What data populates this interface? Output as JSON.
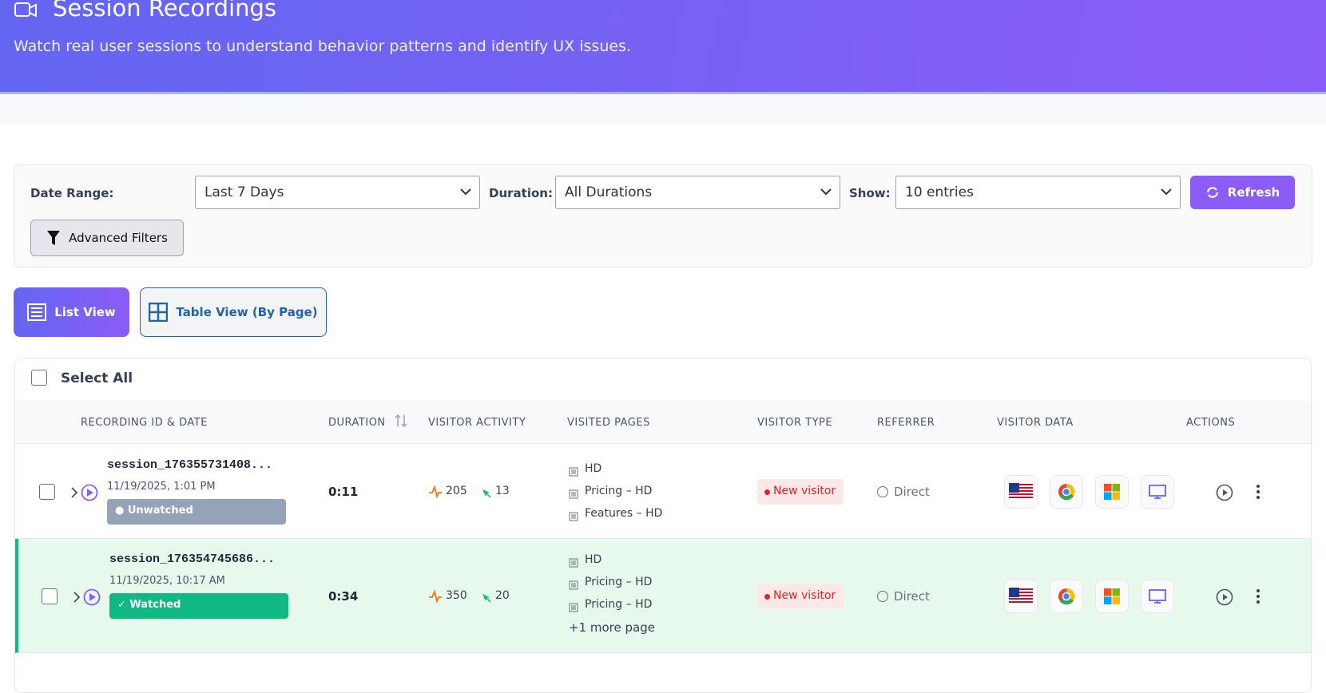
{
  "header": {
    "title": "Session Recordings",
    "subtitle": "Watch real user sessions to understand behavior patterns and identify UX issues."
  },
  "filters": {
    "date_range": {
      "label": "Date Range:",
      "value": "Last 7 Days"
    },
    "duration": {
      "label": "Duration:",
      "value": "All Durations"
    },
    "show": {
      "label": "Show:",
      "value": "10 entries"
    },
    "refresh": "Refresh",
    "advanced": "Advanced Filters"
  },
  "views": {
    "list": "List View",
    "table": "Table View (By Page)"
  },
  "table": {
    "select_all": "Select All",
    "columns": [
      "RECORDING ID & DATE",
      "DURATION",
      "VISITOR ACTIVITY",
      "VISITED PAGES",
      "VISITOR TYPE",
      "REFERRER",
      "VISITOR DATA",
      "ACTIONS"
    ],
    "rows": [
      {
        "id": "session_176355731408...",
        "date": "11/19/2025, 1:01 PM",
        "status": "● Unwatched",
        "duration": "0:11",
        "activity": "205",
        "clicks": "13",
        "pages": [
          "HD",
          "Pricing – HD",
          "Features – HD"
        ],
        "visitor_type": "New visitor",
        "referrer": "Direct"
      },
      {
        "id": "session_176354745686...",
        "date": "11/19/2025, 10:17 AM",
        "status": "✓ Watched",
        "duration": "0:34",
        "activity": "350",
        "clicks": "20",
        "pages": [
          "HD",
          "Pricing – HD",
          "Pricing – HD"
        ],
        "more": "+1 more page",
        "visitor_type": "New visitor",
        "referrer": "Direct"
      }
    ]
  }
}
